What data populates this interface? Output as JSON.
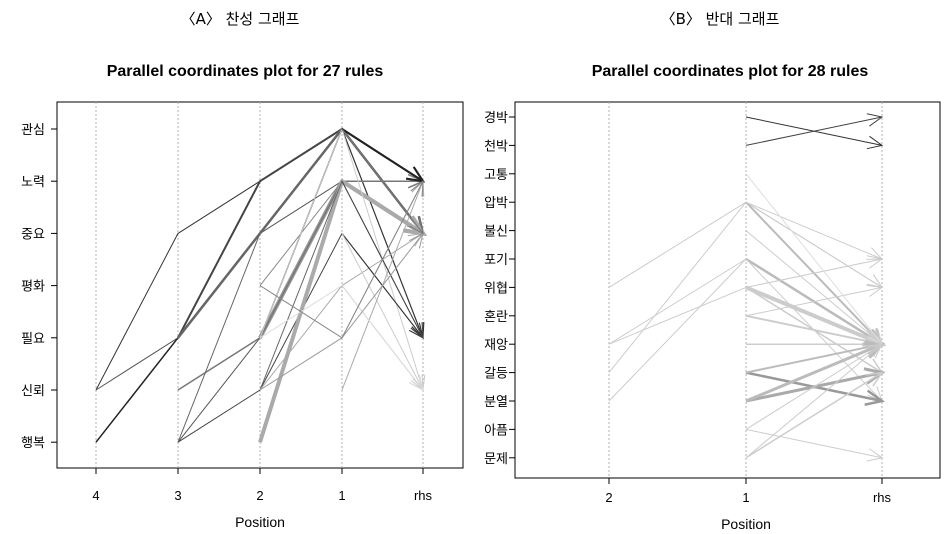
{
  "panel_a": {
    "caption": "〈A〉 찬성 그래프"
  },
  "panel_b": {
    "caption": "〈B〉 반대 그래프"
  },
  "chart_data": [
    {
      "type": "parallel-coordinates",
      "title": "Parallel coordinates plot for 27 rules",
      "xlabel": "Position",
      "x_categories": [
        "4",
        "3",
        "2",
        "1",
        "rhs"
      ],
      "y_categories": [
        "관심",
        "노력",
        "중요",
        "평화",
        "필요",
        "신뢰",
        "행복"
      ],
      "grid": "vertical dotted",
      "rules": [
        {
          "path": [
            "신뢰",
            "중요",
            "노력",
            "관심",
            "노력"
          ],
          "weight": 1,
          "shade": "#333333"
        },
        {
          "path": [
            "행복",
            "필요",
            "중요",
            "관심",
            "노력"
          ],
          "weight": 1.5,
          "shade": "#222222"
        },
        {
          "path": [
            "필요",
            "노력",
            "관심",
            "노력"
          ],
          "weight": 2,
          "shade": "#444444"
        },
        {
          "path": [
            "신뢰",
            "필요",
            "중요",
            "노력",
            "중요"
          ],
          "weight": 1,
          "shade": "#555555"
        },
        {
          "path": [
            "필요",
            "중요",
            "관심",
            "중요"
          ],
          "weight": 2.5,
          "shade": "#666666"
        },
        {
          "path": [
            "필요",
            "관심",
            "필요"
          ],
          "weight": 1.2,
          "shade": "#333333"
        },
        {
          "path": [
            "필요",
            "노력",
            "중요"
          ],
          "weight": 4,
          "shade": "#999999"
        },
        {
          "path": [
            "행복",
            "필요",
            "관심",
            "노력"
          ],
          "weight": 1,
          "shade": "#555555"
        },
        {
          "path": [
            "신뢰",
            "필요",
            "노력",
            "노력"
          ],
          "weight": 1.5,
          "shade": "#777777"
        },
        {
          "path": [
            "행복",
            "신뢰",
            "중요",
            "필요"
          ],
          "weight": 1,
          "shade": "#444444"
        },
        {
          "path": [
            "행복",
            "중요",
            "관심",
            "중요"
          ],
          "weight": 1,
          "shade": "#666666"
        },
        {
          "path": [
            "평화",
            "노력",
            "중요"
          ],
          "weight": 1,
          "shade": "#888888"
        },
        {
          "path": [
            "행복",
            "노력",
            "중요"
          ],
          "weight": 4,
          "shade": "#aaaaaa"
        },
        {
          "path": [
            "신뢰",
            "노력",
            "필요"
          ],
          "weight": 1,
          "shade": "#666666"
        },
        {
          "path": [
            "필요",
            "관심",
            "신뢰"
          ],
          "weight": 1,
          "shade": "#cccccc"
        },
        {
          "path": [
            "신뢰",
            "평화",
            "중요"
          ],
          "weight": 1,
          "shade": "#aaaaaa"
        },
        {
          "path": [
            "신뢰",
            "필요",
            "노력"
          ],
          "weight": 1,
          "shade": "#999999"
        },
        {
          "path": [
            "중요",
            "필요"
          ],
          "weight": 1,
          "shade": "#333333"
        },
        {
          "path": [
            "중요",
            "신뢰"
          ],
          "weight": 1,
          "shade": "#cccccc"
        },
        {
          "path": [
            "평화",
            "신뢰"
          ],
          "weight": 1,
          "shade": "#bbbbbb"
        },
        {
          "path": [
            "신뢰",
            "노력"
          ],
          "weight": 1,
          "shade": "#aaaaaa"
        },
        {
          "path": [
            "필요",
            "평화",
            "신뢰"
          ],
          "weight": 1,
          "shade": "#dddddd"
        },
        {
          "path": [
            "노력",
            "필요"
          ],
          "weight": 1,
          "shade": "#444444"
        },
        {
          "path": [
            "필요",
            "중요"
          ],
          "weight": 1,
          "shade": "#999999"
        },
        {
          "path": [
            "관심",
            "노력"
          ],
          "weight": 2,
          "shade": "#222222"
        },
        {
          "path": [
            "관심",
            "중요"
          ],
          "weight": 1,
          "shade": "#777777"
        },
        {
          "path": [
            "평화",
            "필요",
            "노력"
          ],
          "weight": 1,
          "shade": "#888888"
        }
      ]
    },
    {
      "type": "parallel-coordinates",
      "title": "Parallel coordinates plot for 28 rules",
      "xlabel": "Position",
      "x_categories": [
        "2",
        "1",
        "rhs"
      ],
      "y_categories": [
        "경박",
        "천박",
        "고통",
        "압박",
        "불신",
        "포기",
        "위협",
        "혼란",
        "재앙",
        "갈등",
        "분열",
        "아픔",
        "문제"
      ],
      "grid": "vertical dotted",
      "rules": [
        {
          "path": [
            "경박",
            "천박"
          ],
          "weight": 1,
          "shade": "#333333"
        },
        {
          "path": [
            "천박",
            "경박"
          ],
          "weight": 1,
          "shade": "#444444"
        },
        {
          "path": [
            "위협",
            "압박",
            "재앙"
          ],
          "weight": 1,
          "shade": "#cccccc"
        },
        {
          "path": [
            "재앙",
            "포기",
            "재앙"
          ],
          "weight": 1,
          "shade": "#cccccc"
        },
        {
          "path": [
            "재앙",
            "위협",
            "갈등"
          ],
          "weight": 1,
          "shade": "#cccccc"
        },
        {
          "path": [
            "갈등",
            "압박",
            "위협"
          ],
          "weight": 1,
          "shade": "#cccccc"
        },
        {
          "path": [
            "분열",
            "포기",
            "재앙"
          ],
          "weight": 1,
          "shade": "#cccccc"
        },
        {
          "path": [
            "압박",
            "재앙"
          ],
          "weight": 2,
          "shade": "#bbbbbb"
        },
        {
          "path": [
            "압박",
            "포기"
          ],
          "weight": 1,
          "shade": "#cccccc"
        },
        {
          "path": [
            "압박",
            "위협"
          ],
          "weight": 1,
          "shade": "#cccccc"
        },
        {
          "path": [
            "포기",
            "재앙"
          ],
          "weight": 2.5,
          "shade": "#bbbbbb"
        },
        {
          "path": [
            "포기",
            "분열"
          ],
          "weight": 1,
          "shade": "#cccccc"
        },
        {
          "path": [
            "위협",
            "재앙"
          ],
          "weight": 4,
          "shade": "#cccccc"
        },
        {
          "path": [
            "위협",
            "포기"
          ],
          "weight": 1,
          "shade": "#cccccc"
        },
        {
          "path": [
            "위협",
            "갈등"
          ],
          "weight": 1.5,
          "shade": "#cccccc"
        },
        {
          "path": [
            "혼란",
            "재앙"
          ],
          "weight": 2,
          "shade": "#cccccc"
        },
        {
          "path": [
            "혼란",
            "위협"
          ],
          "weight": 1,
          "shade": "#cccccc"
        },
        {
          "path": [
            "재앙",
            "재앙"
          ],
          "weight": 1.5,
          "shade": "#cccccc"
        },
        {
          "path": [
            "갈등",
            "분열"
          ],
          "weight": 2.5,
          "shade": "#999999"
        },
        {
          "path": [
            "갈등",
            "재앙"
          ],
          "weight": 2,
          "shade": "#bbbbbb"
        },
        {
          "path": [
            "분열",
            "갈등"
          ],
          "weight": 3,
          "shade": "#aaaaaa"
        },
        {
          "path": [
            "분열",
            "재앙"
          ],
          "weight": 3,
          "shade": "#bbbbbb"
        },
        {
          "path": [
            "아픔",
            "재앙"
          ],
          "weight": 1,
          "shade": "#cccccc"
        },
        {
          "path": [
            "아픔",
            "문제"
          ],
          "weight": 1,
          "shade": "#cccccc"
        },
        {
          "path": [
            "문제",
            "재앙"
          ],
          "weight": 1,
          "shade": "#cccccc"
        },
        {
          "path": [
            "문제",
            "갈등"
          ],
          "weight": 1.5,
          "shade": "#cccccc"
        },
        {
          "path": [
            "고통",
            "재앙"
          ],
          "weight": 1,
          "shade": "#dddddd"
        },
        {
          "path": [
            "불신",
            "재앙"
          ],
          "weight": 1,
          "shade": "#cccccc"
        }
      ]
    }
  ]
}
